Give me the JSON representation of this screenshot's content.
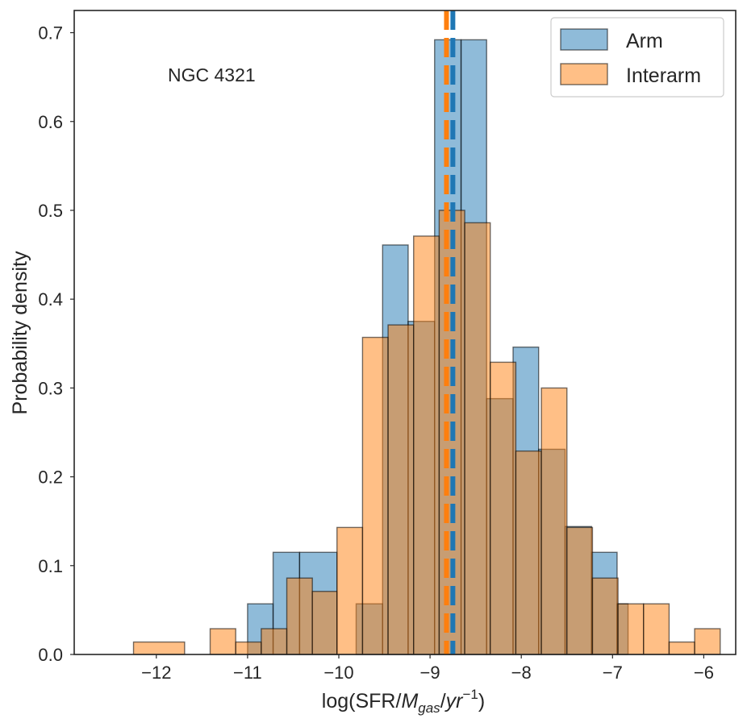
{
  "chart_data": {
    "type": "histogram",
    "annotation": "NGC 4321",
    "xlabel_prefix": "log(SFR/",
    "xlabel_M": "M",
    "xlabel_gas": "gas",
    "xlabel_slash": "/",
    "xlabel_yr": "yr",
    "xlabel_exp": "−1",
    "xlabel_suffix": ")",
    "ylabel": "Probability density",
    "xlim": [
      -12.9,
      -5.65
    ],
    "ylim": [
      0,
      0.725
    ],
    "xticks": [
      -12,
      -11,
      -10,
      -9,
      -8,
      -7,
      -6
    ],
    "xtick_labels": [
      "−12",
      "−11",
      "−10",
      "−9",
      "−8",
      "−7",
      "−6"
    ],
    "yticks": [
      0.0,
      0.1,
      0.2,
      0.3,
      0.4,
      0.5,
      0.6,
      0.7
    ],
    "ytick_labels": [
      "0.0",
      "0.1",
      "0.2",
      "0.3",
      "0.4",
      "0.5",
      "0.6",
      "0.7"
    ],
    "legend_position": "top-right",
    "series": [
      {
        "name": "Arm",
        "color": "#1f77b4",
        "median": -8.75,
        "bins": [
          {
            "x0": -11.0,
            "x1": -10.72,
            "density": 0.057
          },
          {
            "x0": -10.72,
            "x1": -10.43,
            "density": 0.115
          },
          {
            "x0": -10.43,
            "x1": -10.02,
            "density": 0.115
          },
          {
            "x0": -9.81,
            "x1": -9.52,
            "density": 0.057
          },
          {
            "x0": -9.52,
            "x1": -9.24,
            "density": 0.461
          },
          {
            "x0": -9.24,
            "x1": -8.95,
            "density": 0.375
          },
          {
            "x0": -8.95,
            "x1": -8.66,
            "density": 0.692
          },
          {
            "x0": -8.66,
            "x1": -8.38,
            "density": 0.692
          },
          {
            "x0": -8.38,
            "x1": -8.09,
            "density": 0.288
          },
          {
            "x0": -8.09,
            "x1": -7.81,
            "density": 0.346
          },
          {
            "x0": -7.81,
            "x1": -7.52,
            "density": 0.231
          },
          {
            "x0": -7.52,
            "x1": -7.23,
            "density": 0.144
          },
          {
            "x0": -7.23,
            "x1": -6.95,
            "density": 0.115
          },
          {
            "x0": -6.95,
            "x1": -6.83,
            "density": 0.057
          }
        ]
      },
      {
        "name": "Interarm",
        "color": "#ff7f0e",
        "median": -8.82,
        "bins": [
          {
            "x0": -12.25,
            "x1": -11.69,
            "density": 0.014
          },
          {
            "x0": -11.41,
            "x1": -11.13,
            "density": 0.029
          },
          {
            "x0": -11.13,
            "x1": -10.85,
            "density": 0.014
          },
          {
            "x0": -10.85,
            "x1": -10.57,
            "density": 0.029
          },
          {
            "x0": -10.57,
            "x1": -10.29,
            "density": 0.086
          },
          {
            "x0": -10.29,
            "x1": -10.02,
            "density": 0.071
          },
          {
            "x0": -10.02,
            "x1": -9.74,
            "density": 0.143
          },
          {
            "x0": -9.74,
            "x1": -9.46,
            "density": 0.357
          },
          {
            "x0": -9.46,
            "x1": -9.18,
            "density": 0.371
          },
          {
            "x0": -9.18,
            "x1": -8.9,
            "density": 0.471
          },
          {
            "x0": -8.9,
            "x1": -8.62,
            "density": 0.5
          },
          {
            "x0": -8.62,
            "x1": -8.34,
            "density": 0.486
          },
          {
            "x0": -8.34,
            "x1": -8.06,
            "density": 0.329
          },
          {
            "x0": -8.06,
            "x1": -7.78,
            "density": 0.229
          },
          {
            "x0": -7.78,
            "x1": -7.5,
            "density": 0.3
          },
          {
            "x0": -7.5,
            "x1": -7.22,
            "density": 0.143
          },
          {
            "x0": -7.22,
            "x1": -6.94,
            "density": 0.086
          },
          {
            "x0": -6.94,
            "x1": -6.66,
            "density": 0.057
          },
          {
            "x0": -6.66,
            "x1": -6.38,
            "density": 0.057
          },
          {
            "x0": -6.38,
            "x1": -6.1,
            "density": 0.014
          },
          {
            "x0": -6.1,
            "x1": -5.82,
            "density": 0.029
          }
        ]
      }
    ]
  }
}
